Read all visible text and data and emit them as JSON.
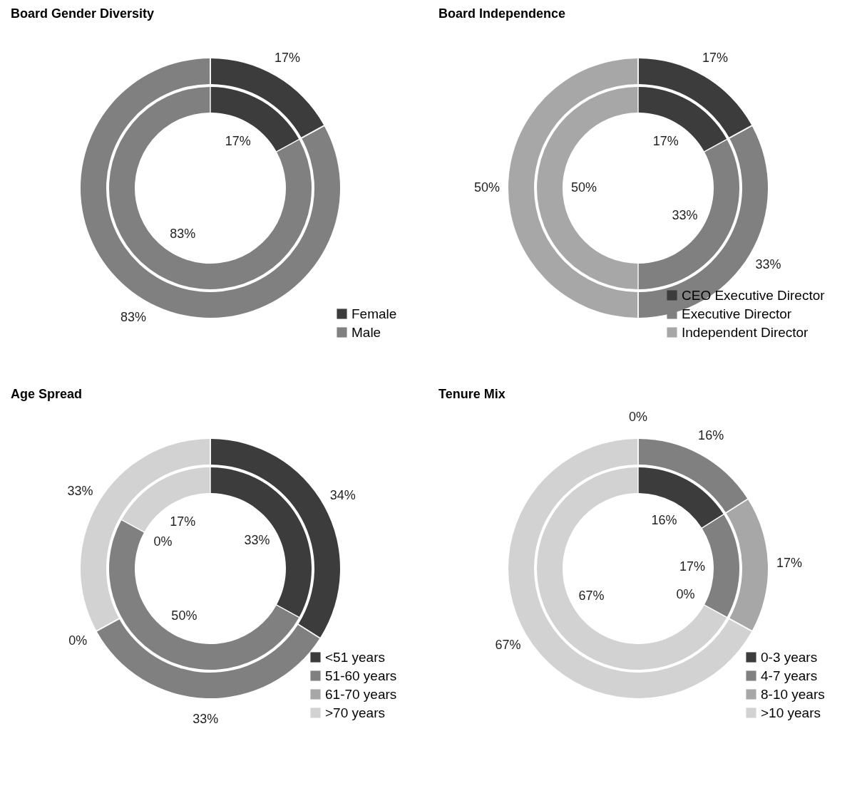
{
  "chart_data": [
    {
      "type": "donut",
      "title": "Board Gender Diversity",
      "categories": [
        "Female",
        "Male"
      ],
      "colors": [
        "#3c3c3c",
        "#808080"
      ],
      "legend": "bottom right",
      "series": [
        {
          "values": [
            17,
            83
          ],
          "value_labels": [
            "17%",
            "83%"
          ]
        },
        {
          "values": [
            17,
            83
          ],
          "value_labels": [
            "17%",
            "83%"
          ]
        }
      ]
    },
    {
      "type": "donut",
      "title": "Board Independence",
      "categories": [
        "CEO Executive Director",
        "Executive Director",
        "Independent Director"
      ],
      "colors": [
        "#3c3c3c",
        "#808080",
        "#a7a7a8"
      ],
      "legend": "bottom right",
      "series": [
        {
          "values": [
            17,
            33,
            50
          ],
          "value_labels": [
            "17%",
            "33%",
            "50%"
          ]
        },
        {
          "values": [
            17,
            33,
            50
          ],
          "value_labels": [
            "17%",
            "33%",
            "50%"
          ]
        }
      ]
    },
    {
      "type": "donut",
      "title": "Age Spread",
      "categories": [
        "<51 years",
        "51-60 years",
        "61-70 years",
        ">70 years"
      ],
      "colors": [
        "#3c3c3c",
        "#808080",
        "#a7a7a8",
        "#d2d2d2"
      ],
      "legend": "bottom right",
      "series": [
        {
          "values": [
            34,
            33,
            0,
            33
          ],
          "value_labels": [
            "34%",
            "33%",
            "0%",
            "33%"
          ]
        },
        {
          "values": [
            33,
            50,
            0,
            17
          ],
          "value_labels": [
            "33%",
            "50%",
            "0%",
            "17%"
          ]
        }
      ]
    },
    {
      "type": "donut",
      "title": "Tenure Mix",
      "categories": [
        "0-3 years",
        "4-7 years",
        "8-10 years",
        ">10 years"
      ],
      "colors": [
        "#3c3c3c",
        "#808080",
        "#a7a7a8",
        "#d2d2d2"
      ],
      "legend": "bottom right",
      "series": [
        {
          "values": [
            0,
            16,
            17,
            67
          ],
          "value_labels": [
            "0%",
            "16%",
            "17%",
            "67%"
          ]
        },
        {
          "values": [
            16,
            17,
            0,
            67
          ],
          "value_labels": [
            "16%",
            "17%",
            "0%",
            "67%"
          ]
        }
      ]
    }
  ]
}
